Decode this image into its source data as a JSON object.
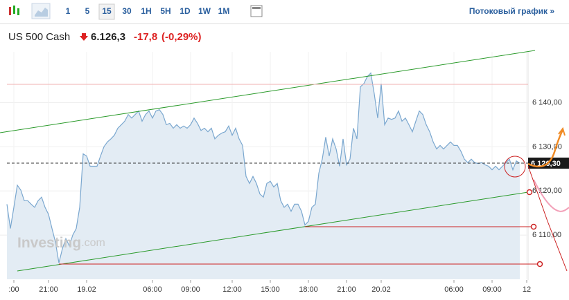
{
  "header": {
    "intervals": [
      "1",
      "5",
      "15",
      "30",
      "1H",
      "5H",
      "1D",
      "1W",
      "1M"
    ],
    "active_interval_index": 2,
    "stream_link": "Потоковый график »",
    "instrument": "US 500 Cash",
    "price": "6.126,3",
    "change": "-17,8",
    "change_pct": "(-0,29%)"
  },
  "chart_data": {
    "type": "area",
    "watermark": [
      "Investing",
      ".com"
    ],
    "series": [
      {
        "color": "#7aa7cf",
        "values": [
          6117.0,
          6111.5,
          6116.3,
          6121.3,
          6120.2,
          6117.8,
          6117.8,
          6117.0,
          6116.3,
          6117.8,
          6118.6,
          6116.3,
          6114.7,
          6111.5,
          6108.4,
          6103.7,
          6106.9,
          6109.2,
          6107.6,
          6110.0,
          6111.5,
          6116.3,
          6128.4,
          6127.9,
          6125.6,
          6125.6,
          6125.6,
          6127.9,
          6130.0,
          6131.1,
          6131.8,
          6132.6,
          6134.2,
          6135.0,
          6135.8,
          6137.3,
          6136.5,
          6137.3,
          6138.1,
          6135.8,
          6137.3,
          6138.1,
          6136.5,
          6138.1,
          6138.4,
          6137.3,
          6135.0,
          6135.3,
          6134.2,
          6135.0,
          6134.2,
          6134.7,
          6134.2,
          6135.0,
          6136.5,
          6135.3,
          6133.7,
          6134.2,
          6133.4,
          6134.2,
          6131.8,
          6132.6,
          6133.1,
          6133.4,
          6134.7,
          6132.6,
          6134.2,
          6131.8,
          6130.3,
          6123.3,
          6121.7,
          6123.3,
          6121.7,
          6119.3,
          6118.6,
          6121.7,
          6122.2,
          6120.9,
          6121.7,
          6117.8,
          6116.3,
          6117.0,
          6115.4,
          6117.0,
          6117.0,
          6115.4,
          6112.3,
          6113.1,
          6116.3,
          6117.0,
          6124.0,
          6127.2,
          6132.2,
          6127.9,
          6131.8,
          6129.5,
          6125.6,
          6131.8,
          6125.9,
          6127.2,
          6134.2,
          6131.8,
          6143.6,
          6144.3,
          6145.9,
          6146.7,
          6142.0,
          6136.5,
          6144.3,
          6135.0,
          6136.5,
          6136.2,
          6136.5,
          6138.1,
          6135.8,
          6136.5,
          6135.0,
          6133.4,
          6135.8,
          6138.1,
          6137.3,
          6135.0,
          6133.4,
          6131.1,
          6129.5,
          6130.3,
          6129.5,
          6130.3,
          6131.1,
          6130.3,
          6130.3,
          6129.0,
          6127.2,
          6126.4,
          6127.2,
          6126.4,
          6126.2,
          6126.4,
          6125.9,
          6125.6,
          6124.8,
          6125.6,
          6124.8,
          6125.6,
          6126.4,
          6127.2,
          6124.8,
          6126.8,
          6126.3
        ]
      }
    ],
    "fill": "#e3ecf4",
    "xlim": [
      0,
      150
    ],
    "xticks": [
      {
        "value": 2,
        "label": ":00"
      },
      {
        "value": 12,
        "label": "21:00"
      },
      {
        "value": 23,
        "label": "19.02"
      },
      {
        "value": 42,
        "label": "06:00"
      },
      {
        "value": 53,
        "label": "09:00"
      },
      {
        "value": 65,
        "label": "12:00"
      },
      {
        "value": 76,
        "label": "15:00"
      },
      {
        "value": 87,
        "label": "18:00"
      },
      {
        "value": 98,
        "label": "21:00"
      },
      {
        "value": 108,
        "label": "20.02"
      },
      {
        "value": 129,
        "label": "06:00"
      },
      {
        "value": 140,
        "label": "09:00"
      },
      {
        "value": 150,
        "label": "12"
      }
    ],
    "ylim": [
      6100,
      6151.5
    ],
    "yticks": [
      {
        "value": 6110,
        "label": "6 110,00"
      },
      {
        "value": 6120,
        "label": "6 120,00"
      },
      {
        "value": 6130,
        "label": "6 130,00"
      },
      {
        "value": 6140,
        "label": "6 140,00"
      }
    ],
    "grid": true,
    "last_price": {
      "value": 6126.3,
      "label": "6 126,30"
    }
  }
}
